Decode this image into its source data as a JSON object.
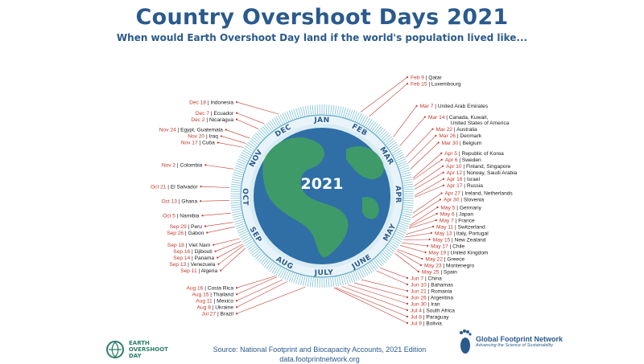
{
  "title": "Country Overshoot Days 2021",
  "subtitle": "When would Earth Overshoot Day land if the world's population lived like...",
  "year_label": "2021",
  "source_line1": "Source: National Footprint and Biocapacity Accounts, 2021 Edition",
  "source_line2": "data.footprintnetwork.org",
  "logo_left": {
    "line1": "EARTH",
    "line2": "OVERSHOOT",
    "line3": "DAY"
  },
  "logo_right": {
    "name": "Global Footprint Network",
    "tagline": "Advancing the Science of Sustainability"
  },
  "colors": {
    "title": "#2a5a8c",
    "date": "#c0392b",
    "ring": "#5aa6c8",
    "ocean": "#2f6fa6",
    "land": "#3f9a6a"
  },
  "chart_data": {
    "type": "radial",
    "months": [
      "JAN",
      "FEB",
      "MAR",
      "APR",
      "MAY",
      "JUNE",
      "JULY",
      "AUG",
      "SEP",
      "OCT",
      "NOV",
      "DEC"
    ],
    "points": [
      {
        "date": "Feb 9",
        "country": "Qatar",
        "doy": 40
      },
      {
        "date": "Feb 15",
        "country": "Luxembourg",
        "doy": 46
      },
      {
        "date": "Mar 7",
        "country": "United Arab Emirates",
        "doy": 66
      },
      {
        "date": "Mar 14",
        "country": "Canada, Kuwait,",
        "country2": "United States of America",
        "doy": 73
      },
      {
        "date": "Mar 22",
        "country": "Australia",
        "doy": 81
      },
      {
        "date": "Mar 26",
        "country": "Denmark",
        "doy": 85
      },
      {
        "date": "Mar 30",
        "country": "Belgium",
        "doy": 89
      },
      {
        "date": "Apr 5",
        "country": "Republic of Korea",
        "doy": 95
      },
      {
        "date": "Apr 6",
        "country": "Sweden",
        "doy": 96
      },
      {
        "date": "Apr 10",
        "country": "Finland, Singapore",
        "doy": 100
      },
      {
        "date": "Apr 12",
        "country": "Norway, Saudi Arabia",
        "doy": 102
      },
      {
        "date": "Apr 16",
        "country": "Israel",
        "doy": 106
      },
      {
        "date": "Apr 17",
        "country": "Russia",
        "doy": 107
      },
      {
        "date": "Apr 27",
        "country": "Ireland, Netherlands",
        "doy": 117
      },
      {
        "date": "Apr 30",
        "country": "Slovenia",
        "doy": 120
      },
      {
        "date": "May 5",
        "country": "Germany",
        "doy": 125
      },
      {
        "date": "May 6",
        "country": "Japan",
        "doy": 126
      },
      {
        "date": "May 7",
        "country": "France",
        "doy": 127
      },
      {
        "date": "May 11",
        "country": "Switzerland",
        "doy": 131
      },
      {
        "date": "May 13",
        "country": "Italy, Portugal",
        "doy": 133
      },
      {
        "date": "May 15",
        "country": "New Zealand",
        "doy": 135
      },
      {
        "date": "May 17",
        "country": "Chile",
        "doy": 137
      },
      {
        "date": "May 19",
        "country": "United Kingdom",
        "doy": 139
      },
      {
        "date": "May 22",
        "country": "Greece",
        "doy": 142
      },
      {
        "date": "May 23",
        "country": "Montenegro",
        "doy": 143
      },
      {
        "date": "May 25",
        "country": "Spain",
        "doy": 145
      },
      {
        "date": "Jun 7",
        "country": "China",
        "doy": 158
      },
      {
        "date": "Jun 10",
        "country": "Bahamas",
        "doy": 161
      },
      {
        "date": "Jun 21",
        "country": "Romania",
        "doy": 172
      },
      {
        "date": "Jun 26",
        "country": "Argentina",
        "doy": 177
      },
      {
        "date": "Jun 30",
        "country": "Iran",
        "doy": 181
      },
      {
        "date": "Jul 4",
        "country": "South Africa",
        "doy": 185
      },
      {
        "date": "Jul 8",
        "country": "Paraguay",
        "doy": 189
      },
      {
        "date": "Jul 9",
        "country": "Bolivia",
        "doy": 190
      },
      {
        "date": "Jul 27",
        "country": "Brazil",
        "doy": 208
      },
      {
        "date": "Aug 8",
        "country": "Ukraine",
        "doy": 220
      },
      {
        "date": "Aug 11",
        "country": "Mexico",
        "doy": 223
      },
      {
        "date": "Aug 15",
        "country": "Thailand",
        "doy": 227
      },
      {
        "date": "Aug 16",
        "country": "Costa Rica",
        "doy": 228
      },
      {
        "date": "Sep 11",
        "country": "Algeria",
        "doy": 254
      },
      {
        "date": "Sep 13",
        "country": "Venezuela",
        "doy": 256
      },
      {
        "date": "Sep 14",
        "country": "Panama",
        "doy": 257
      },
      {
        "date": "Sep 16",
        "country": "Djibouti",
        "doy": 259
      },
      {
        "date": "Sep 18",
        "country": "Viet Nam",
        "doy": 261
      },
      {
        "date": "Sep 26",
        "country": "Gabon",
        "doy": 269
      },
      {
        "date": "Sep 29",
        "country": "Peru",
        "doy": 272
      },
      {
        "date": "Oct 5",
        "country": "Namibia",
        "doy": 278
      },
      {
        "date": "Oct 13",
        "country": "Ghana",
        "doy": 286
      },
      {
        "date": "Oct 21",
        "country": "El Salvador",
        "doy": 294
      },
      {
        "date": "Nov 2",
        "country": "Colombia",
        "doy": 306
      },
      {
        "date": "Nov 17",
        "country": "Cuba",
        "doy": 321
      },
      {
        "date": "Nov 20",
        "country": "Iraq",
        "doy": 324
      },
      {
        "date": "Nov 24",
        "country": "Egypt, Guatemala",
        "doy": 328
      },
      {
        "date": "Dec 2",
        "country": "Nicaragua",
        "doy": 336
      },
      {
        "date": "Dec 7",
        "country": "Ecuador",
        "doy": 341
      },
      {
        "date": "Dec 18",
        "country": "Indonesia",
        "doy": 352
      }
    ]
  }
}
